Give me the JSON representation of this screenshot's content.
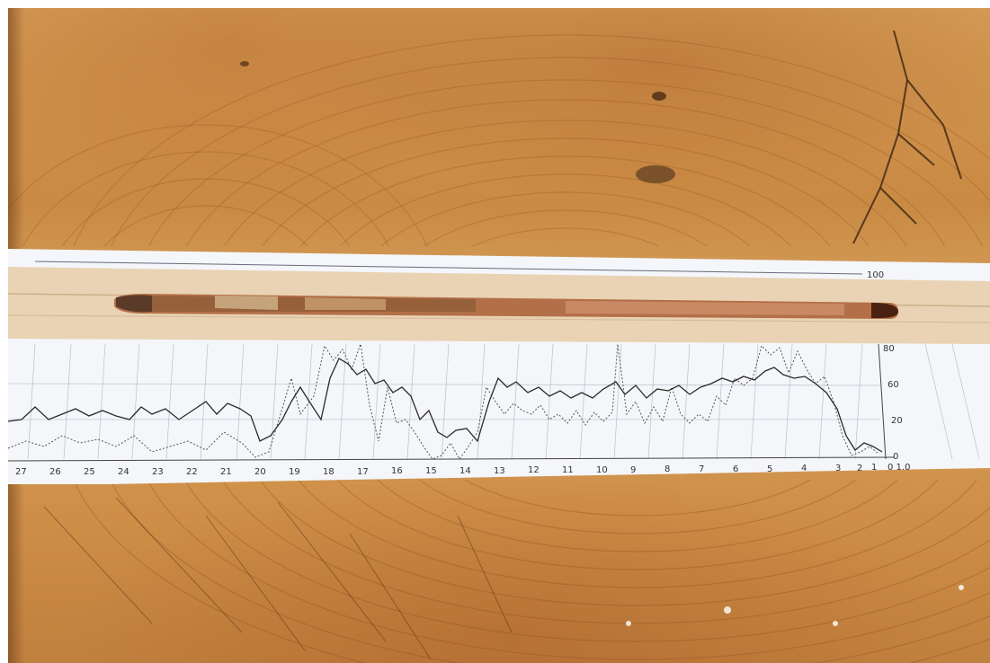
{
  "photo": {
    "subject": "wood-core-on-strip-chart",
    "colors": {
      "wood": "#d49a55",
      "paper": "#f4f6fa",
      "trace_solid": "#2a2a2a",
      "trace_dotted": "#555555",
      "core": "#a45a38"
    }
  },
  "chart": {
    "x_ticks": [
      "27",
      "26",
      "25",
      "24",
      "23",
      "22",
      "21",
      "20",
      "19",
      "18",
      "17",
      "16",
      "15",
      "14",
      "13",
      "12",
      "11",
      "10",
      "9",
      "8",
      "7",
      "6",
      "5",
      "4",
      "3",
      "2",
      "1",
      "0 1.0"
    ],
    "y_ticks": [
      "80",
      "60",
      "20",
      "0"
    ],
    "top_scale_label": "100"
  }
}
